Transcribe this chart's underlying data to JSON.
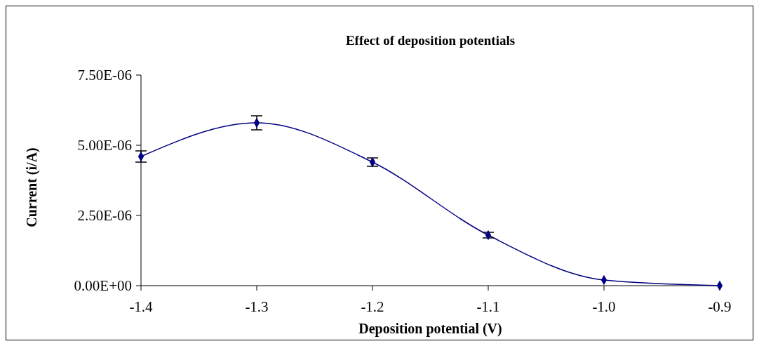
{
  "chart_data": {
    "type": "line",
    "title": "Effect of deposition potentials",
    "xlabel": "Deposition potential (V)",
    "ylabel": "Current (i/A)",
    "x": [
      -1.4,
      -1.3,
      -1.2,
      -1.1,
      -1.0,
      -0.9
    ],
    "series": [
      {
        "color": "#000080",
        "values": [
          4.6e-06,
          5.8e-06,
          4.4e-06,
          1.8e-06,
          2e-07,
          0
        ],
        "errors": [
          2e-07,
          2.5e-07,
          1.5e-07,
          1e-07,
          null,
          null
        ]
      }
    ],
    "xlim": [
      -1.4,
      -0.9
    ],
    "xticks": [
      {
        "value": -1.4,
        "label": "-1.4"
      },
      {
        "value": -1.3,
        "label": "-1.3"
      },
      {
        "value": -1.2,
        "label": "-1.2"
      },
      {
        "value": -1.1,
        "label": "-1.1"
      },
      {
        "value": -1.0,
        "label": "-1.0"
      },
      {
        "value": -0.9,
        "label": "-0.9"
      }
    ],
    "ylim": [
      0,
      7.5e-06
    ],
    "yticks": [
      {
        "value": 0,
        "label": "0.00E+00"
      },
      {
        "value": 2.5e-06,
        "label": "2.50E-06"
      },
      {
        "value": 5e-06,
        "label": "5.00E-06"
      },
      {
        "value": 7.5e-06,
        "label": "7.50E-06"
      }
    ],
    "marker": "diamond",
    "line_style": "solid",
    "grid": false
  }
}
